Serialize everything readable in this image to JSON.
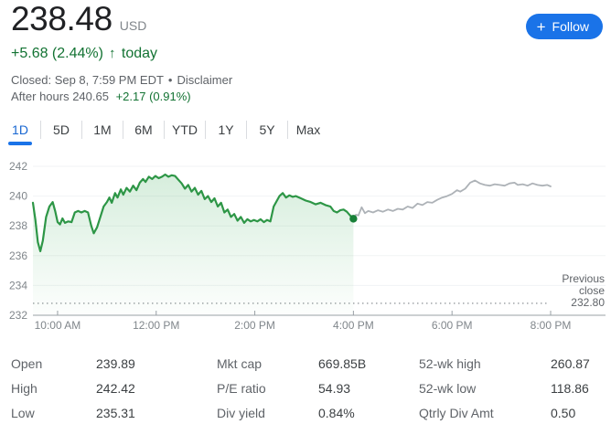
{
  "header": {
    "price": "238.48",
    "currency": "USD",
    "change": "+5.68 (2.44%)",
    "change_arrow": "↑",
    "change_suffix": "today",
    "closed_text": "Closed: Sep 8, 7:59 PM EDT",
    "closed_separator": "•",
    "disclaimer_label": "Disclaimer",
    "after_hours_text": "After hours 240.65",
    "after_hours_change": "+2.17 (0.91%)",
    "follow": {
      "icon": "+",
      "label": "Follow"
    }
  },
  "tabs": [
    {
      "label": "1D",
      "active": true
    },
    {
      "label": "5D",
      "active": false
    },
    {
      "label": "1M",
      "active": false
    },
    {
      "label": "6M",
      "active": false
    },
    {
      "label": "YTD",
      "active": false
    },
    {
      "label": "1Y",
      "active": false
    },
    {
      "label": "5Y",
      "active": false
    },
    {
      "label": "Max",
      "active": false
    }
  ],
  "chart_data": {
    "type": "line",
    "x_unit": "minutes since 9:30 AM",
    "x_range": [
      0,
      630
    ],
    "y_range": [
      232,
      242
    ],
    "y_ticks": [
      242,
      240,
      238,
      236,
      234,
      232
    ],
    "x_ticks": [
      {
        "t": 30,
        "label": "10:00 AM"
      },
      {
        "t": 150,
        "label": "12:00 PM"
      },
      {
        "t": 270,
        "label": "2:00 PM"
      },
      {
        "t": 390,
        "label": "4:00 PM"
      },
      {
        "t": 510,
        "label": "6:00 PM"
      },
      {
        "t": 630,
        "label": "8:00 PM"
      }
    ],
    "previous_close": {
      "value": 232.8,
      "label_lines": [
        "Previous",
        "close",
        "232.80"
      ]
    },
    "end_marker": {
      "t": 390,
      "price": 238.48,
      "color": "#188038"
    },
    "series": [
      {
        "name": "market-hours",
        "color": "#2d9646",
        "fill": true,
        "points": [
          [
            0,
            239.55
          ],
          [
            3,
            238.4
          ],
          [
            6,
            236.9
          ],
          [
            9,
            236.3
          ],
          [
            12,
            237.0
          ],
          [
            16,
            238.6
          ],
          [
            20,
            239.3
          ],
          [
            24,
            239.6
          ],
          [
            27,
            239.0
          ],
          [
            30,
            238.25
          ],
          [
            33,
            238.1
          ],
          [
            36,
            238.5
          ],
          [
            39,
            238.2
          ],
          [
            43,
            238.3
          ],
          [
            47,
            238.25
          ],
          [
            51,
            238.9
          ],
          [
            55,
            239.0
          ],
          [
            59,
            238.9
          ],
          [
            63,
            239.0
          ],
          [
            67,
            238.9
          ],
          [
            71,
            238.0
          ],
          [
            74,
            237.5
          ],
          [
            78,
            237.9
          ],
          [
            82,
            238.6
          ],
          [
            86,
            239.3
          ],
          [
            90,
            239.6
          ],
          [
            93,
            239.9
          ],
          [
            96,
            239.55
          ],
          [
            100,
            240.2
          ],
          [
            103,
            239.9
          ],
          [
            107,
            240.45
          ],
          [
            110,
            240.1
          ],
          [
            114,
            240.55
          ],
          [
            118,
            240.3
          ],
          [
            122,
            240.7
          ],
          [
            126,
            240.4
          ],
          [
            130,
            240.9
          ],
          [
            134,
            241.15
          ],
          [
            137,
            240.95
          ],
          [
            141,
            241.3
          ],
          [
            145,
            241.15
          ],
          [
            149,
            241.35
          ],
          [
            153,
            241.2
          ],
          [
            157,
            241.3
          ],
          [
            161,
            241.45
          ],
          [
            165,
            241.3
          ],
          [
            169,
            241.4
          ],
          [
            173,
            241.35
          ],
          [
            177,
            241.1
          ],
          [
            181,
            240.85
          ],
          [
            185,
            240.5
          ],
          [
            189,
            240.75
          ],
          [
            193,
            240.3
          ],
          [
            197,
            240.55
          ],
          [
            201,
            240.1
          ],
          [
            205,
            240.35
          ],
          [
            209,
            239.8
          ],
          [
            213,
            240.0
          ],
          [
            217,
            239.6
          ],
          [
            221,
            239.85
          ],
          [
            225,
            239.3
          ],
          [
            229,
            239.55
          ],
          [
            233,
            238.9
          ],
          [
            237,
            239.1
          ],
          [
            241,
            238.6
          ],
          [
            245,
            238.8
          ],
          [
            249,
            238.35
          ],
          [
            253,
            238.6
          ],
          [
            257,
            238.2
          ],
          [
            261,
            238.45
          ],
          [
            265,
            238.3
          ],
          [
            269,
            238.4
          ],
          [
            273,
            238.3
          ],
          [
            277,
            238.45
          ],
          [
            281,
            238.25
          ],
          [
            285,
            238.4
          ],
          [
            289,
            238.3
          ],
          [
            293,
            239.3
          ],
          [
            296,
            239.6
          ],
          [
            300,
            240.0
          ],
          [
            304,
            240.2
          ],
          [
            308,
            239.9
          ],
          [
            312,
            240.05
          ],
          [
            316,
            239.95
          ],
          [
            320,
            240.0
          ],
          [
            326,
            239.85
          ],
          [
            332,
            239.7
          ],
          [
            338,
            239.6
          ],
          [
            344,
            239.45
          ],
          [
            350,
            239.55
          ],
          [
            356,
            239.4
          ],
          [
            362,
            239.3
          ],
          [
            366,
            239.0
          ],
          [
            370,
            238.9
          ],
          [
            374,
            239.05
          ],
          [
            378,
            239.1
          ],
          [
            382,
            238.95
          ],
          [
            386,
            238.7
          ],
          [
            390,
            238.48
          ]
        ]
      },
      {
        "name": "after-hours",
        "color": "#adb2b7",
        "fill": false,
        "points": [
          [
            390,
            238.48
          ],
          [
            393,
            238.75
          ],
          [
            396,
            238.7
          ],
          [
            400,
            239.25
          ],
          [
            404,
            238.85
          ],
          [
            408,
            239.0
          ],
          [
            414,
            238.9
          ],
          [
            420,
            239.05
          ],
          [
            426,
            238.95
          ],
          [
            432,
            239.1
          ],
          [
            438,
            239.0
          ],
          [
            444,
            239.15
          ],
          [
            450,
            239.1
          ],
          [
            456,
            239.3
          ],
          [
            462,
            239.2
          ],
          [
            468,
            239.5
          ],
          [
            474,
            239.4
          ],
          [
            480,
            239.6
          ],
          [
            486,
            239.55
          ],
          [
            492,
            239.75
          ],
          [
            498,
            239.9
          ],
          [
            504,
            240.0
          ],
          [
            510,
            240.15
          ],
          [
            516,
            240.4
          ],
          [
            520,
            240.3
          ],
          [
            526,
            240.5
          ],
          [
            532,
            240.9
          ],
          [
            538,
            241.05
          ],
          [
            544,
            240.85
          ],
          [
            550,
            240.75
          ],
          [
            556,
            240.7
          ],
          [
            562,
            240.8
          ],
          [
            568,
            240.75
          ],
          [
            574,
            240.7
          ],
          [
            580,
            240.85
          ],
          [
            586,
            240.9
          ],
          [
            590,
            240.75
          ],
          [
            596,
            240.8
          ],
          [
            602,
            240.7
          ],
          [
            608,
            240.85
          ],
          [
            614,
            240.75
          ],
          [
            620,
            240.7
          ],
          [
            626,
            240.75
          ],
          [
            630,
            240.65
          ]
        ]
      }
    ],
    "colors": {
      "grid_faint": "#f1f3f4",
      "axis_line": "#9aa0a6",
      "tick_label": "#80868b",
      "dotted_line": "#80868b",
      "prev_close_label": "#5f6368",
      "fill_top": "rgba(52,168,83,0.20)",
      "fill_bottom": "rgba(52,168,83,0.01)"
    }
  },
  "stats": {
    "columns": [
      {
        "rows": [
          {
            "label": "Open",
            "value": "239.89"
          },
          {
            "label": "High",
            "value": "242.42"
          },
          {
            "label": "Low",
            "value": "235.31"
          }
        ]
      },
      {
        "rows": [
          {
            "label": "Mkt cap",
            "value": "669.85B"
          },
          {
            "label": "P/E ratio",
            "value": "54.93"
          },
          {
            "label": "Div yield",
            "value": "0.84%"
          }
        ]
      },
      {
        "rows": [
          {
            "label": "52-wk high",
            "value": "260.87"
          },
          {
            "label": "52-wk low",
            "value": "118.86"
          },
          {
            "label": "Qtrly Div Amt",
            "value": "0.50"
          }
        ]
      }
    ]
  }
}
